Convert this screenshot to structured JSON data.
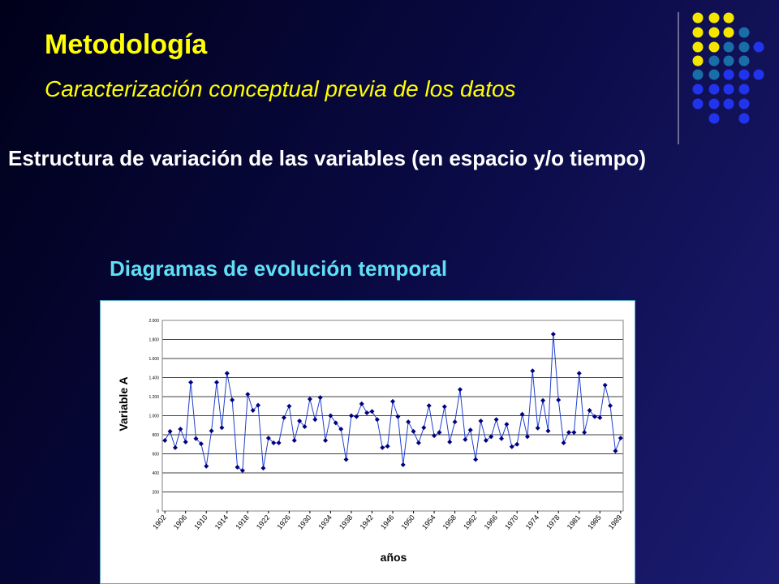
{
  "header": {
    "title": "Metodología",
    "subtitle": "Caracterización conceptual previa de los datos"
  },
  "body": {
    "text": "Estructura de variación de las variables (en espacio y/o tiempo)",
    "heading": "Diagramas de evolución temporal"
  },
  "chart_data": {
    "type": "line",
    "x_label": "años",
    "y_label": "Variable A",
    "categories": [
      "1902",
      null,
      null,
      null,
      "1906",
      null,
      null,
      null,
      "1910",
      null,
      null,
      null,
      "1914",
      null,
      null,
      null,
      "1918",
      null,
      null,
      null,
      "1922",
      null,
      null,
      null,
      "1926",
      null,
      null,
      null,
      "1930",
      null,
      null,
      null,
      "1934",
      null,
      null,
      null,
      "1938",
      null,
      null,
      null,
      "1942",
      null,
      null,
      null,
      "1946",
      null,
      null,
      null,
      "1950",
      null,
      null,
      null,
      "1954",
      null,
      null,
      null,
      "1958",
      null,
      null,
      null,
      "1962",
      null,
      null,
      null,
      "1966",
      null,
      null,
      null,
      "1970",
      null,
      null,
      null,
      "1974",
      null,
      null,
      null,
      "1978",
      null,
      null,
      null,
      "1981",
      null,
      null,
      null,
      "1985",
      null,
      null,
      null,
      "1989"
    ],
    "values": [
      740,
      835,
      665,
      860,
      725,
      1350,
      760,
      705,
      470,
      840,
      1350,
      875,
      1445,
      1165,
      460,
      425,
      1225,
      1055,
      1110,
      450,
      765,
      715,
      715,
      980,
      1100,
      740,
      945,
      885,
      1175,
      960,
      1190,
      740,
      1000,
      925,
      860,
      540,
      1000,
      990,
      1125,
      1030,
      1045,
      960,
      665,
      680,
      1150,
      990,
      485,
      935,
      835,
      715,
      875,
      1105,
      790,
      825,
      1095,
      725,
      935,
      1275,
      750,
      850,
      540,
      945,
      740,
      780,
      960,
      760,
      910,
      675,
      700,
      1015,
      780,
      1470,
      870,
      1160,
      840,
      1855,
      1165,
      715,
      825,
      825,
      1445,
      825,
      1055,
      990,
      980,
      1320,
      1105,
      630,
      765
    ],
    "color": "#1f3fcf",
    "marker_color": "#000080",
    "ylim": [
      0,
      2000
    ],
    "yticks": [
      0,
      200,
      400,
      600,
      800,
      {
        "value": 1000,
        "label": "1.000"
      },
      {
        "value": 1200,
        "label": "1.200"
      },
      {
        "value": 1400,
        "label": "1.400"
      },
      {
        "value": 1600,
        "label": "1.600"
      },
      {
        "value": 1800,
        "label": "1.800"
      },
      {
        "value": 2000,
        "label": "2.000"
      }
    ],
    "grid": true
  }
}
